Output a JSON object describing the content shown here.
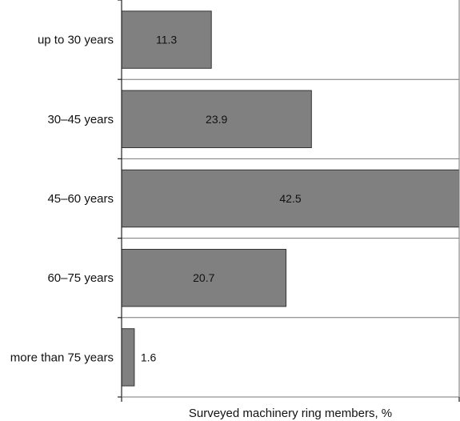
{
  "chart_data": {
    "type": "bar",
    "orientation": "horizontal",
    "categories": [
      "up to 30 years",
      "30–45 years",
      "45–60 years",
      "60–75 years",
      "more than 75 years"
    ],
    "values": [
      11.3,
      23.9,
      42.5,
      20.7,
      1.6
    ],
    "value_labels": [
      "11.3",
      "23.9",
      "42.5",
      "20.7",
      "1.6"
    ],
    "xlabel": "Surveyed machinery ring members, %",
    "xlim": [
      0,
      42.5
    ],
    "grid": "horizontal separators between categories",
    "bar_color": "#808080",
    "bar_edge_color": "#333333"
  }
}
